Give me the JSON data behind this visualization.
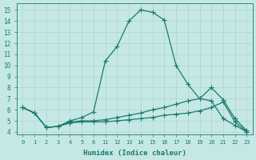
{
  "xlabel": "Humidex (Indice chaleur)",
  "bg_color": "#c5e8e5",
  "line_color": "#1a7a6e",
  "grid_color": "#afd4d0",
  "x_labels": [
    "0",
    "1",
    "2",
    "3",
    "4",
    "5",
    "6",
    "11",
    "12",
    "13",
    "14",
    "15",
    "16",
    "17",
    "18",
    "19",
    "20",
    "21",
    "22",
    "23"
  ],
  "ylim": [
    3.8,
    15.6
  ],
  "yticks": [
    4,
    5,
    6,
    7,
    8,
    9,
    10,
    11,
    12,
    13,
    14,
    15
  ],
  "series1_y": [
    6.2,
    5.7,
    4.4,
    4.5,
    5.0,
    5.3,
    5.8,
    10.4,
    11.7,
    14.0,
    15.0,
    14.8,
    14.1,
    10.0,
    8.3,
    7.0,
    6.8,
    5.2,
    4.6,
    4.0
  ],
  "series2_y": [
    6.2,
    5.7,
    4.4,
    4.5,
    4.9,
    5.0,
    5.0,
    5.1,
    5.3,
    5.5,
    5.7,
    6.0,
    6.2,
    6.5,
    6.8,
    7.0,
    8.0,
    6.9,
    5.2,
    4.1
  ],
  "series3_y": [
    6.2,
    5.7,
    4.4,
    4.5,
    4.8,
    4.9,
    4.9,
    4.9,
    5.0,
    5.1,
    5.2,
    5.3,
    5.5,
    5.6,
    5.7,
    5.9,
    6.2,
    6.7,
    4.9,
    4.0
  ],
  "marker": "+",
  "markersize": 4,
  "linewidth": 0.9
}
